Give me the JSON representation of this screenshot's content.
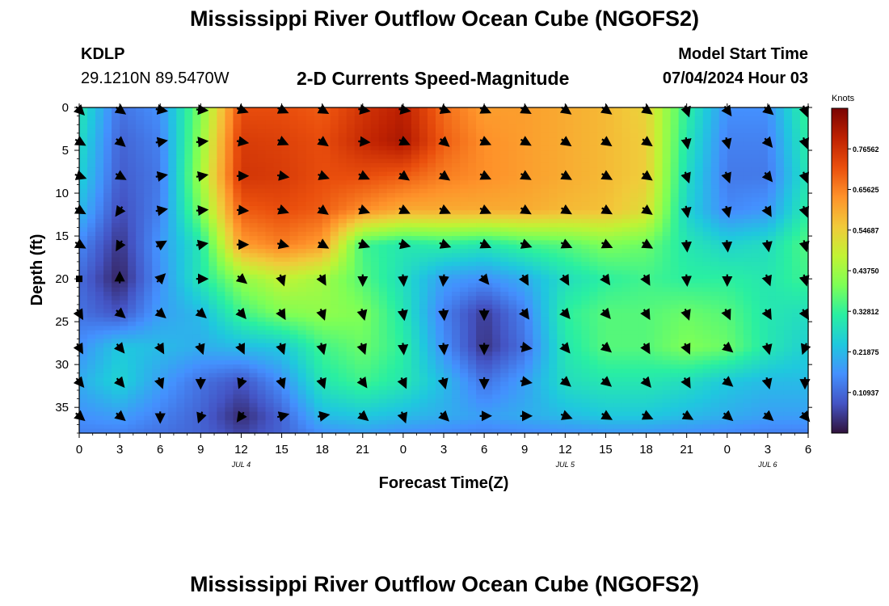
{
  "page": {
    "title": "Mississippi River Outflow Ocean Cube (NGOFS2)",
    "title_repeat": "Mississippi River Outflow Ocean Cube (NGOFS2)"
  },
  "header": {
    "station_id": "KDLP",
    "location": "29.1210N  89.5470W",
    "plot_subtitle": "2-D Currents Speed-Magnitude",
    "model_start_label": "Model Start Time",
    "model_start_value": "07/04/2024 Hour 03"
  },
  "chart_data": {
    "type": "heatmap",
    "title": "2-D Currents Speed-Magnitude",
    "xlabel": "Forecast Time(Z)",
    "ylabel": "Depth (ft)",
    "x_tick_labels": [
      "0",
      "3",
      "6",
      "9",
      "12",
      "15",
      "18",
      "21",
      "0",
      "3",
      "6",
      "9",
      "12",
      "15",
      "18",
      "21",
      "0",
      "3",
      "6"
    ],
    "x_range_hours": [
      0,
      54
    ],
    "date_labels": [
      {
        "text": "JUL 4",
        "hour": 12
      },
      {
        "text": "JUL 5",
        "hour": 36
      },
      {
        "text": "JUL 6",
        "hour": 51
      }
    ],
    "y_ticks": [
      0,
      5,
      10,
      15,
      20,
      25,
      30,
      35
    ],
    "ylim": [
      0,
      38
    ],
    "y_inverted": true,
    "colorbar": {
      "label": "Knots",
      "tick_labels": [
        "0.76562",
        "0.65625",
        "0.54687",
        "0.43750",
        "0.32812",
        "0.21875",
        "0.10937"
      ],
      "tick_values": [
        0.76562,
        0.65625,
        0.54687,
        0.4375,
        0.32812,
        0.21875,
        0.10937
      ],
      "range": [
        0,
        0.875
      ],
      "stops": [
        "#30123b",
        "#4454c4",
        "#4490fe",
        "#1fc8de",
        "#29efa2",
        "#7dff56",
        "#c1f334",
        "#f1ca3a",
        "#fe922a",
        "#ea4f0d",
        "#be2102",
        "#7a0403"
      ]
    },
    "speed_field_knots": {
      "hours": [
        0,
        3,
        6,
        9,
        12,
        15,
        18,
        21,
        24,
        27,
        30,
        33,
        36,
        39,
        42,
        45,
        48,
        51,
        54
      ],
      "depths_ft": [
        0,
        4,
        8,
        12,
        16,
        20,
        24,
        28,
        32,
        36,
        38
      ],
      "rows": [
        [
          0.3,
          0.12,
          0.16,
          0.4,
          0.72,
          0.72,
          0.7,
          0.76,
          0.8,
          0.68,
          0.62,
          0.62,
          0.6,
          0.58,
          0.54,
          0.32,
          0.16,
          0.16,
          0.34
        ],
        [
          0.28,
          0.1,
          0.14,
          0.42,
          0.75,
          0.74,
          0.72,
          0.78,
          0.82,
          0.7,
          0.64,
          0.62,
          0.6,
          0.58,
          0.55,
          0.3,
          0.14,
          0.14,
          0.32
        ],
        [
          0.26,
          0.09,
          0.13,
          0.44,
          0.76,
          0.75,
          0.72,
          0.72,
          0.7,
          0.66,
          0.64,
          0.62,
          0.6,
          0.58,
          0.55,
          0.28,
          0.13,
          0.13,
          0.3
        ],
        [
          0.22,
          0.07,
          0.14,
          0.4,
          0.7,
          0.72,
          0.7,
          0.64,
          0.6,
          0.6,
          0.6,
          0.6,
          0.58,
          0.57,
          0.52,
          0.26,
          0.15,
          0.17,
          0.32
        ],
        [
          0.15,
          0.04,
          0.17,
          0.3,
          0.62,
          0.66,
          0.62,
          0.34,
          0.3,
          0.32,
          0.3,
          0.34,
          0.36,
          0.4,
          0.38,
          0.3,
          0.26,
          0.28,
          0.36
        ],
        [
          0.11,
          0.02,
          0.16,
          0.3,
          0.42,
          0.48,
          0.44,
          0.36,
          0.28,
          0.18,
          0.16,
          0.2,
          0.28,
          0.32,
          0.34,
          0.32,
          0.32,
          0.3,
          0.34
        ],
        [
          0.12,
          0.08,
          0.18,
          0.22,
          0.34,
          0.4,
          0.42,
          0.4,
          0.3,
          0.14,
          0.05,
          0.14,
          0.32,
          0.36,
          0.36,
          0.38,
          0.36,
          0.3,
          0.28
        ],
        [
          0.16,
          0.24,
          0.22,
          0.2,
          0.22,
          0.24,
          0.34,
          0.38,
          0.32,
          0.16,
          0.04,
          0.12,
          0.3,
          0.36,
          0.36,
          0.4,
          0.38,
          0.3,
          0.25
        ],
        [
          0.2,
          0.26,
          0.18,
          0.12,
          0.08,
          0.16,
          0.3,
          0.34,
          0.3,
          0.22,
          0.12,
          0.18,
          0.28,
          0.3,
          0.3,
          0.28,
          0.24,
          0.22,
          0.22
        ],
        [
          0.16,
          0.18,
          0.14,
          0.1,
          0.03,
          0.1,
          0.22,
          0.24,
          0.22,
          0.2,
          0.18,
          0.2,
          0.22,
          0.24,
          0.24,
          0.22,
          0.2,
          0.18,
          0.18
        ],
        [
          0.14,
          0.14,
          0.12,
          0.1,
          0.06,
          0.1,
          0.16,
          0.18,
          0.16,
          0.15,
          0.14,
          0.15,
          0.16,
          0.17,
          0.17,
          0.16,
          0.15,
          0.14,
          0.14
        ]
      ]
    },
    "vector_field": {
      "hours": [
        0,
        3,
        6,
        9,
        12,
        15,
        18,
        21,
        24,
        27,
        30,
        33,
        36,
        39,
        42,
        45,
        48,
        51,
        54
      ],
      "depths_ft": [
        0,
        4,
        8,
        12,
        16,
        20,
        24,
        28,
        32,
        36
      ],
      "directions_deg": [
        [
          135,
          125,
          100,
          95,
          110,
          115,
          120,
          100,
          100,
          110,
          115,
          120,
          125,
          125,
          125,
          160,
          145,
          130,
          160
        ],
        [
          120,
          130,
          80,
          85,
          100,
          115,
          125,
          95,
          115,
          130,
          115,
          120,
          125,
          125,
          125,
          170,
          165,
          140,
          160
        ],
        [
          110,
          120,
          80,
          80,
          90,
          100,
          110,
          115,
          125,
          125,
          115,
          120,
          120,
          120,
          125,
          160,
          160,
          140,
          160
        ],
        [
          120,
          215,
          80,
          85,
          95,
          110,
          125,
          110,
          115,
          115,
          115,
          120,
          120,
          120,
          125,
          170,
          165,
          150,
          160
        ],
        [
          120,
          210,
          60,
          80,
          90,
          105,
          120,
          110,
          105,
          110,
          115,
          110,
          115,
          115,
          120,
          175,
          175,
          170,
          165
        ],
        [
          0,
          0,
          45,
          90,
          130,
          160,
          150,
          180,
          175,
          185,
          140,
          150,
          150,
          145,
          150,
          175,
          180,
          160,
          165
        ],
        [
          150,
          130,
          130,
          130,
          140,
          150,
          160,
          165,
          170,
          175,
          180,
          145,
          140,
          140,
          150,
          160,
          155,
          150,
          150
        ],
        [
          150,
          140,
          150,
          160,
          155,
          160,
          165,
          160,
          175,
          175,
          180,
          100,
          140,
          130,
          150,
          155,
          130,
          165,
          200
        ],
        [
          140,
          140,
          160,
          180,
          200,
          160,
          160,
          145,
          155,
          165,
          180,
          100,
          130,
          130,
          140,
          150,
          130,
          165,
          180
        ],
        [
          130,
          130,
          180,
          200,
          215,
          75,
          80,
          130,
          160,
          135,
          90,
          90,
          110,
          120,
          115,
          120,
          130,
          130,
          140
        ]
      ],
      "arrow_missing": [
        [
          5,
          0
        ]
      ]
    }
  }
}
